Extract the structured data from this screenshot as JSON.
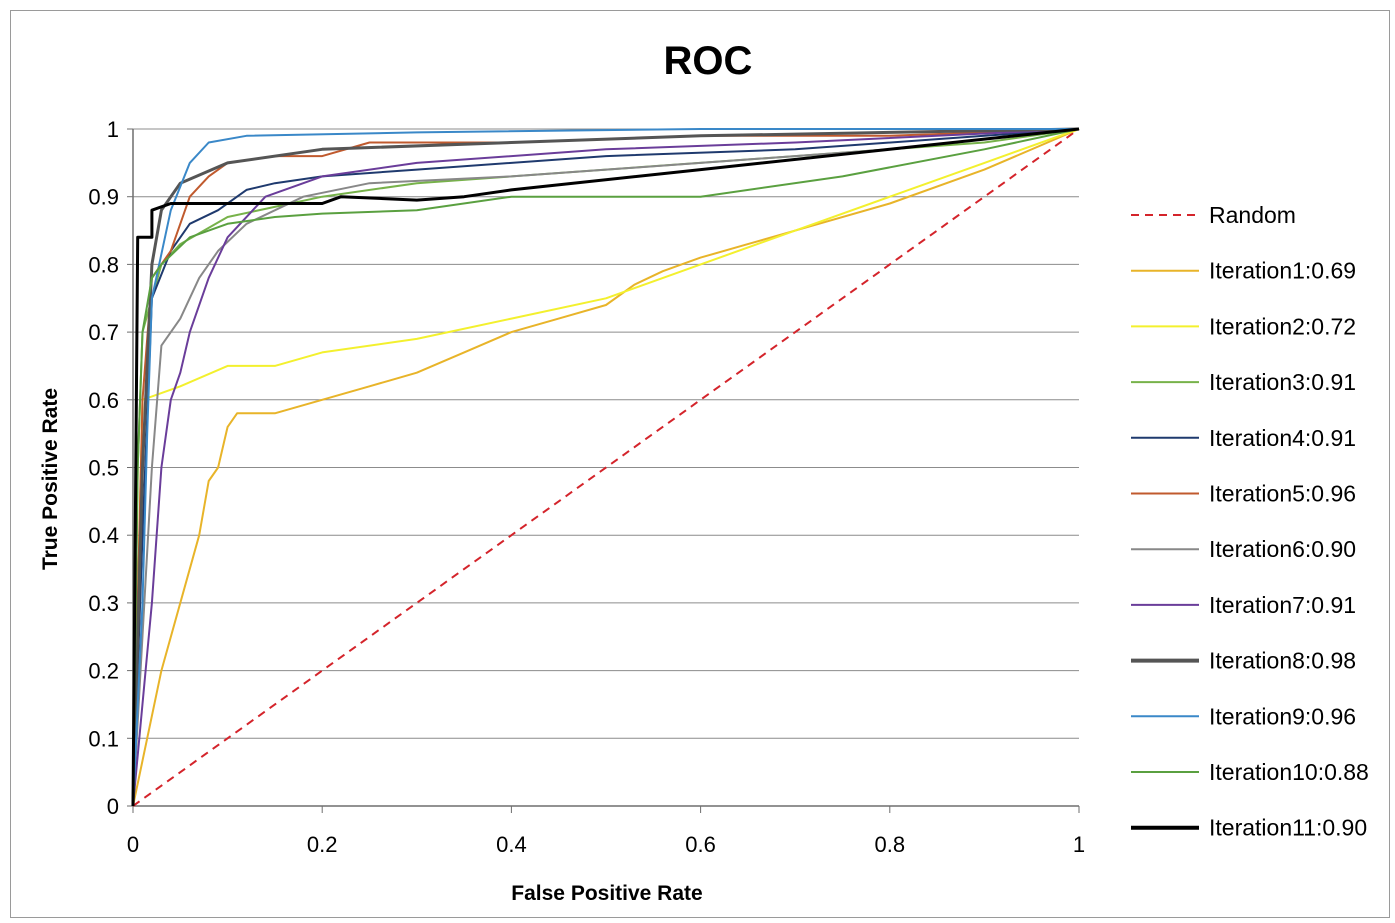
{
  "chart_data": {
    "type": "line",
    "title": "ROC",
    "xlabel": "False Positive Rate",
    "ylabel": "True Positive Rate",
    "xlim": [
      0,
      1
    ],
    "ylim": [
      0,
      1
    ],
    "x_ticks": [
      "0",
      "0.2",
      "0.4",
      "0.6",
      "0.8",
      "1"
    ],
    "y_ticks": [
      "0",
      "0.1",
      "0.2",
      "0.3",
      "0.4",
      "0.5",
      "0.6",
      "0.7",
      "0.8",
      "0.9",
      "1"
    ],
    "grid": "horizontal",
    "legend_position": "right",
    "series": [
      {
        "name": "Random",
        "color": "#d4242b",
        "style": "dashed",
        "width": 2,
        "points": [
          [
            0,
            0
          ],
          [
            1,
            1
          ]
        ]
      },
      {
        "name": "Iteration1:0.69",
        "color": "#e8b429",
        "style": "solid",
        "width": 2,
        "points": [
          [
            0,
            0
          ],
          [
            0.03,
            0.2
          ],
          [
            0.07,
            0.4
          ],
          [
            0.08,
            0.48
          ],
          [
            0.09,
            0.5
          ],
          [
            0.1,
            0.56
          ],
          [
            0.11,
            0.58
          ],
          [
            0.15,
            0.58
          ],
          [
            0.2,
            0.6
          ],
          [
            0.25,
            0.62
          ],
          [
            0.3,
            0.64
          ],
          [
            0.35,
            0.67
          ],
          [
            0.4,
            0.7
          ],
          [
            0.45,
            0.72
          ],
          [
            0.5,
            0.74
          ],
          [
            0.53,
            0.77
          ],
          [
            0.56,
            0.79
          ],
          [
            0.6,
            0.81
          ],
          [
            0.65,
            0.83
          ],
          [
            0.7,
            0.85
          ],
          [
            0.8,
            0.89
          ],
          [
            0.9,
            0.94
          ],
          [
            1,
            1
          ]
        ]
      },
      {
        "name": "Iteration2:0.72",
        "color": "#f3f02e",
        "style": "solid",
        "width": 2,
        "points": [
          [
            0,
            0
          ],
          [
            0.01,
            0.6
          ],
          [
            0.05,
            0.62
          ],
          [
            0.1,
            0.65
          ],
          [
            0.15,
            0.65
          ],
          [
            0.2,
            0.67
          ],
          [
            0.3,
            0.69
          ],
          [
            0.4,
            0.72
          ],
          [
            0.5,
            0.75
          ],
          [
            0.6,
            0.8
          ],
          [
            0.7,
            0.85
          ],
          [
            0.8,
            0.9
          ],
          [
            0.9,
            0.95
          ],
          [
            1,
            1
          ]
        ]
      },
      {
        "name": "Iteration3:0.91",
        "color": "#77b24a",
        "style": "solid",
        "width": 2,
        "points": [
          [
            0,
            0
          ],
          [
            0.005,
            0.5
          ],
          [
            0.01,
            0.7
          ],
          [
            0.02,
            0.75
          ],
          [
            0.03,
            0.8
          ],
          [
            0.05,
            0.83
          ],
          [
            0.1,
            0.87
          ],
          [
            0.2,
            0.9
          ],
          [
            0.3,
            0.92
          ],
          [
            0.5,
            0.94
          ],
          [
            0.7,
            0.96
          ],
          [
            0.9,
            0.98
          ],
          [
            1,
            1
          ]
        ]
      },
      {
        "name": "Iteration4:0.91",
        "color": "#1f3a6e",
        "style": "solid",
        "width": 2,
        "points": [
          [
            0,
            0
          ],
          [
            0.01,
            0.4
          ],
          [
            0.02,
            0.75
          ],
          [
            0.04,
            0.82
          ],
          [
            0.06,
            0.86
          ],
          [
            0.09,
            0.88
          ],
          [
            0.12,
            0.91
          ],
          [
            0.15,
            0.92
          ],
          [
            0.2,
            0.93
          ],
          [
            0.3,
            0.94
          ],
          [
            0.5,
            0.96
          ],
          [
            0.7,
            0.97
          ],
          [
            0.9,
            0.99
          ],
          [
            1,
            1
          ]
        ]
      },
      {
        "name": "Iteration5:0.96",
        "color": "#c05a2e",
        "style": "solid",
        "width": 2,
        "points": [
          [
            0,
            0
          ],
          [
            0.01,
            0.6
          ],
          [
            0.02,
            0.78
          ],
          [
            0.04,
            0.82
          ],
          [
            0.06,
            0.9
          ],
          [
            0.08,
            0.93
          ],
          [
            0.1,
            0.95
          ],
          [
            0.15,
            0.96
          ],
          [
            0.2,
            0.96
          ],
          [
            0.25,
            0.98
          ],
          [
            0.4,
            0.98
          ],
          [
            0.6,
            0.99
          ],
          [
            0.8,
            0.99
          ],
          [
            1,
            1
          ]
        ]
      },
      {
        "name": "Iteration6:0.90",
        "color": "#888888",
        "style": "solid",
        "width": 2,
        "points": [
          [
            0,
            0
          ],
          [
            0.02,
            0.5
          ],
          [
            0.03,
            0.68
          ],
          [
            0.05,
            0.72
          ],
          [
            0.07,
            0.78
          ],
          [
            0.09,
            0.82
          ],
          [
            0.12,
            0.86
          ],
          [
            0.18,
            0.9
          ],
          [
            0.25,
            0.92
          ],
          [
            0.4,
            0.93
          ],
          [
            0.6,
            0.95
          ],
          [
            0.8,
            0.97
          ],
          [
            1,
            1
          ]
        ]
      },
      {
        "name": "Iteration7:0.91",
        "color": "#6a3d9a",
        "style": "solid",
        "width": 2,
        "points": [
          [
            0,
            0
          ],
          [
            0.02,
            0.3
          ],
          [
            0.03,
            0.5
          ],
          [
            0.04,
            0.6
          ],
          [
            0.05,
            0.64
          ],
          [
            0.06,
            0.7
          ],
          [
            0.08,
            0.78
          ],
          [
            0.1,
            0.84
          ],
          [
            0.14,
            0.9
          ],
          [
            0.2,
            0.93
          ],
          [
            0.3,
            0.95
          ],
          [
            0.5,
            0.97
          ],
          [
            0.7,
            0.98
          ],
          [
            1,
            1
          ]
        ]
      },
      {
        "name": "Iteration8:0.98",
        "color": "#555555",
        "style": "solid",
        "width": 3,
        "points": [
          [
            0,
            0
          ],
          [
            0.01,
            0.5
          ],
          [
            0.02,
            0.8
          ],
          [
            0.03,
            0.88
          ],
          [
            0.05,
            0.92
          ],
          [
            0.1,
            0.95
          ],
          [
            0.2,
            0.97
          ],
          [
            0.4,
            0.98
          ],
          [
            0.6,
            0.99
          ],
          [
            0.8,
            0.995
          ],
          [
            1,
            1
          ]
        ]
      },
      {
        "name": "Iteration9:0.96",
        "color": "#3a88c8",
        "style": "solid",
        "width": 2,
        "points": [
          [
            0,
            0
          ],
          [
            0.01,
            0.3
          ],
          [
            0.015,
            0.55
          ],
          [
            0.02,
            0.75
          ],
          [
            0.04,
            0.88
          ],
          [
            0.06,
            0.95
          ],
          [
            0.08,
            0.98
          ],
          [
            0.12,
            0.99
          ],
          [
            0.3,
            0.995
          ],
          [
            0.6,
            1
          ],
          [
            1,
            1
          ]
        ]
      },
      {
        "name": "Iteration10:0.88",
        "color": "#5aa040",
        "style": "solid",
        "width": 2,
        "points": [
          [
            0,
            0
          ],
          [
            0.005,
            0.5
          ],
          [
            0.01,
            0.7
          ],
          [
            0.02,
            0.78
          ],
          [
            0.03,
            0.8
          ],
          [
            0.06,
            0.84
          ],
          [
            0.1,
            0.86
          ],
          [
            0.15,
            0.87
          ],
          [
            0.2,
            0.875
          ],
          [
            0.3,
            0.88
          ],
          [
            0.4,
            0.9
          ],
          [
            0.6,
            0.9
          ],
          [
            0.75,
            0.93
          ],
          [
            0.9,
            0.97
          ],
          [
            1,
            1
          ]
        ]
      },
      {
        "name": "Iteration11:0.90",
        "color": "#000000",
        "style": "solid",
        "width": 3,
        "points": [
          [
            0,
            0
          ],
          [
            0.005,
            0.84
          ],
          [
            0.02,
            0.84
          ],
          [
            0.02,
            0.88
          ],
          [
            0.04,
            0.89
          ],
          [
            0.2,
            0.89
          ],
          [
            0.22,
            0.9
          ],
          [
            0.3,
            0.895
          ],
          [
            0.35,
            0.9
          ],
          [
            0.4,
            0.91
          ],
          [
            0.6,
            0.94
          ],
          [
            0.8,
            0.97
          ],
          [
            1,
            1
          ]
        ]
      }
    ]
  }
}
